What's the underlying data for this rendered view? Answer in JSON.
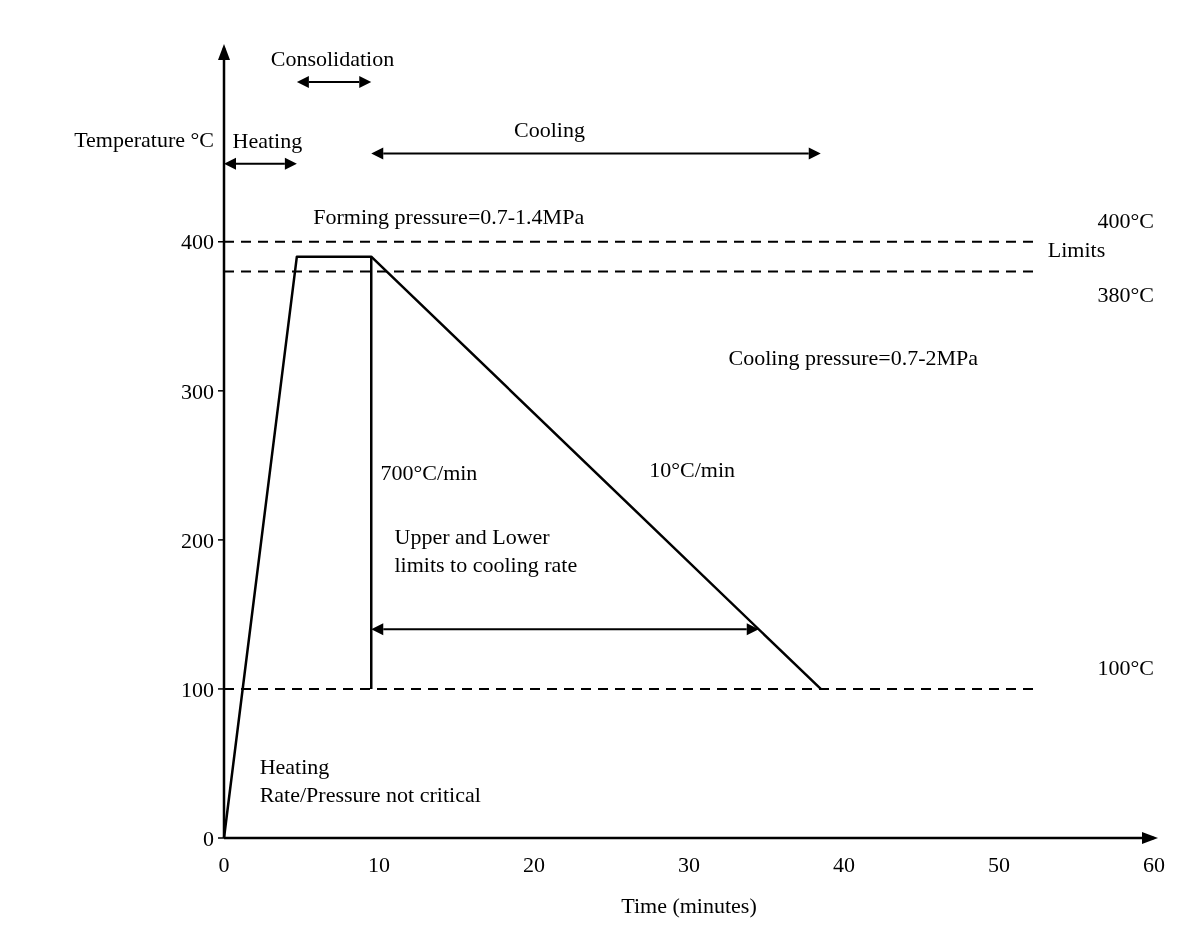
{
  "chart_data": {
    "type": "line",
    "xlabel": "Time (minutes)",
    "ylabel": "Temperature °C",
    "xlim": [
      0,
      60
    ],
    "ylim": [
      0,
      530
    ],
    "xticks": [
      0,
      10,
      20,
      30,
      40,
      50,
      60
    ],
    "yticks": [
      0,
      100,
      200,
      300,
      400
    ],
    "series": [
      {
        "color": "#000000",
        "x": [
          0,
          4.7,
          9.5,
          38.5
        ],
        "values": [
          0,
          390,
          390,
          100
        ]
      },
      {
        "color": "#000000",
        "x": [
          9.5,
          9.5
        ],
        "values": [
          390,
          100
        ]
      }
    ],
    "ref_lines": [
      {
        "axis": "y",
        "value": 400,
        "label": "400°C",
        "line_style": "dashed",
        "color": "#000000"
      },
      {
        "axis": "y",
        "value": 380,
        "label": "380°C",
        "line_style": "dashed",
        "color": "#000000"
      },
      {
        "axis": "y",
        "value": 100,
        "label": "100°C",
        "line_style": "dashed",
        "color": "#000000"
      }
    ],
    "annotations": [
      "Heating",
      "Consolidation",
      "Cooling",
      "Forming pressure=0.7-1.4MPa",
      "Limits",
      "Cooling pressure=0.7-2MPa",
      "700°C/min",
      "10°C/min",
      "Upper and Lower\nlimits to cooling rate",
      "Heating\nRate/Pressure not critical"
    ]
  }
}
